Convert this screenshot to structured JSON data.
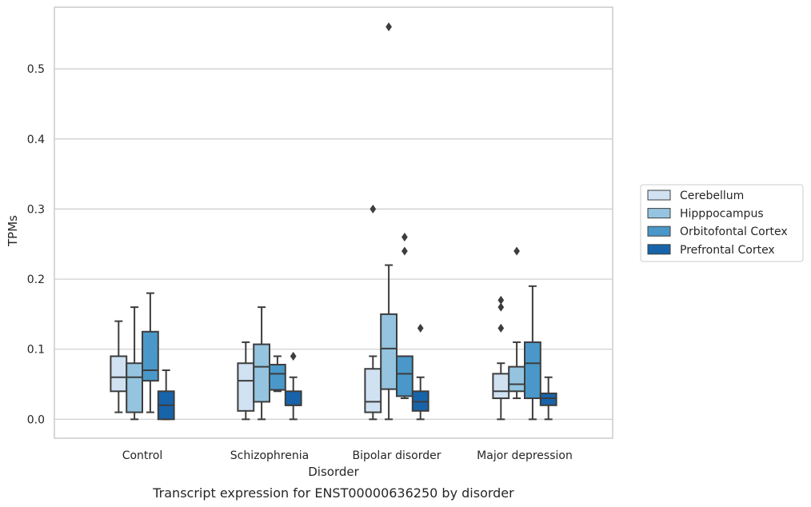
{
  "chart_data": {
    "type": "box",
    "xlabel": "Disorder",
    "ylabel": "TPMs",
    "caption": "Transcript expression for ENST00000636250 by disorder",
    "categories": [
      "Control",
      "Schizophrenia",
      "Bipolar disorder",
      "Major depression"
    ],
    "ylim": [
      -0.027,
      0.588
    ],
    "yticks": [
      0.0,
      0.1,
      0.2,
      0.3,
      0.4,
      0.5
    ],
    "ytick_labels": [
      "0.0",
      "0.1",
      "0.2",
      "0.3",
      "0.4",
      "0.5"
    ],
    "grid": "horizontal",
    "legend_position": "right",
    "series": [
      {
        "name": "Cerebellum",
        "color": "#d0e1f2",
        "boxes": [
          {
            "whislo": 0.01,
            "q1": 0.04,
            "med": 0.06,
            "q3": 0.09,
            "whishi": 0.14,
            "fliers": []
          },
          {
            "whislo": 0.0,
            "q1": 0.012,
            "med": 0.055,
            "q3": 0.08,
            "whishi": 0.11,
            "fliers": []
          },
          {
            "whislo": 0.0,
            "q1": 0.01,
            "med": 0.025,
            "q3": 0.072,
            "whishi": 0.09,
            "fliers": [
              0.3
            ]
          },
          {
            "whislo": 0.0,
            "q1": 0.03,
            "med": 0.04,
            "q3": 0.065,
            "whishi": 0.08,
            "fliers": [
              0.13,
              0.16,
              0.17
            ]
          }
        ]
      },
      {
        "name": "Hipppocampus",
        "color": "#94c4df",
        "boxes": [
          {
            "whislo": 0.0,
            "q1": 0.01,
            "med": 0.06,
            "q3": 0.08,
            "whishi": 0.16,
            "fliers": []
          },
          {
            "whislo": 0.0,
            "q1": 0.025,
            "med": 0.075,
            "q3": 0.107,
            "whishi": 0.16,
            "fliers": []
          },
          {
            "whislo": 0.0,
            "q1": 0.043,
            "med": 0.101,
            "q3": 0.15,
            "whishi": 0.22,
            "fliers": [
              0.56
            ]
          },
          {
            "whislo": 0.03,
            "q1": 0.04,
            "med": 0.05,
            "q3": 0.075,
            "whishi": 0.11,
            "fliers": [
              0.24
            ]
          }
        ]
      },
      {
        "name": "Orbitofontal Cortex",
        "color": "#4a98c9",
        "boxes": [
          {
            "whislo": 0.01,
            "q1": 0.055,
            "med": 0.07,
            "q3": 0.125,
            "whishi": 0.18,
            "fliers": []
          },
          {
            "whislo": 0.04,
            "q1": 0.042,
            "med": 0.065,
            "q3": 0.078,
            "whishi": 0.09,
            "fliers": []
          },
          {
            "whislo": 0.03,
            "q1": 0.033,
            "med": 0.065,
            "q3": 0.09,
            "whishi": 0.09,
            "fliers": [
              0.24,
              0.26
            ]
          },
          {
            "whislo": 0.0,
            "q1": 0.03,
            "med": 0.08,
            "q3": 0.11,
            "whishi": 0.19,
            "fliers": []
          }
        ]
      },
      {
        "name": "Prefrontal Cortex",
        "color": "#1764ab",
        "boxes": [
          {
            "whislo": 0.0,
            "q1": 0.0,
            "med": 0.02,
            "q3": 0.04,
            "whishi": 0.07,
            "fliers": []
          },
          {
            "whislo": 0.0,
            "q1": 0.02,
            "med": 0.02,
            "q3": 0.04,
            "whishi": 0.06,
            "fliers": [
              0.09
            ]
          },
          {
            "whislo": 0.0,
            "q1": 0.012,
            "med": 0.025,
            "q3": 0.04,
            "whishi": 0.06,
            "fliers": [
              0.13
            ]
          },
          {
            "whislo": 0.0,
            "q1": 0.02,
            "med": 0.03,
            "q3": 0.037,
            "whishi": 0.06,
            "fliers": []
          }
        ]
      }
    ]
  },
  "colors": {
    "grid": "#cccccc",
    "frame": "#cccccc",
    "box_edge": "#3d3d3d",
    "text": "#262626"
  }
}
